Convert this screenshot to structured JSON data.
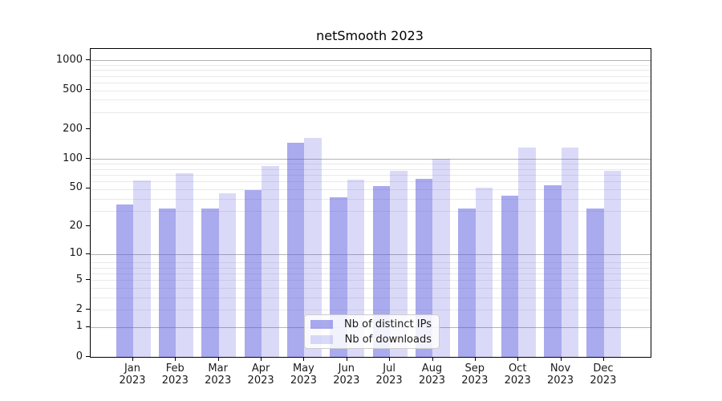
{
  "chart_data": {
    "type": "bar",
    "title": "netSmooth 2023",
    "categories": [
      "Jan 2023",
      "Feb 2023",
      "Mar 2023",
      "Apr 2023",
      "May 2023",
      "Jun 2023",
      "Jul 2023",
      "Aug 2023",
      "Sep 2023",
      "Oct 2023",
      "Nov 2023",
      "Dec 2023"
    ],
    "series": [
      {
        "name": "Nb of distinct IPs",
        "color": "rgba(85,85,221,0.5)",
        "values": [
          34,
          31,
          31,
          48,
          145,
          40,
          53,
          63,
          31,
          42,
          54,
          31
        ]
      },
      {
        "name": "Nb of downloads",
        "color": "rgba(85,85,221,0.22)",
        "values": [
          60,
          71,
          44,
          84,
          163,
          61,
          75,
          100,
          51,
          130,
          131,
          76
        ]
      }
    ],
    "yscale": "log1p",
    "y_ticks": [
      0,
      1,
      2,
      5,
      10,
      20,
      50,
      100,
      200,
      500,
      1000
    ],
    "ylim": [
      0,
      1300
    ],
    "xlabel": "",
    "ylabel": "",
    "grid": "both",
    "legend_position": "lower center",
    "colors": {
      "bar_distinct_ips": "#aaaaee",
      "bar_downloads": "#d9d9f7",
      "grid_major": "#b3b3b3",
      "grid_minor": "#e9e9e9",
      "spine": "#000000"
    }
  }
}
